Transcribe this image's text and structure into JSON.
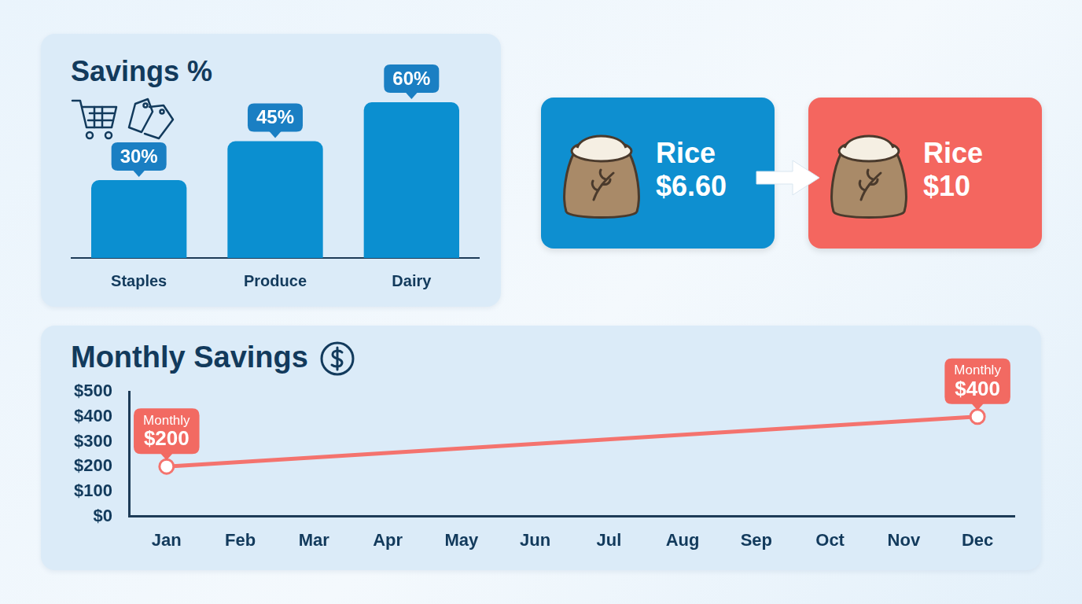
{
  "chart_data": [
    {
      "type": "bar",
      "title": "Savings %",
      "categories": [
        "Staples",
        "Produce",
        "Dairy"
      ],
      "values": [
        30,
        45,
        60
      ],
      "value_labels": [
        "30%",
        "45%",
        "60%"
      ],
      "data_labels": true,
      "color": "#0b8fd0",
      "ylim": [
        0,
        60
      ],
      "tick_labels": "x",
      "grid": false
    },
    {
      "type": "line",
      "title": "Monthly Savings",
      "categories": [
        "Jan",
        "Feb",
        "Mar",
        "Apr",
        "May",
        "Jun",
        "Jul",
        "Aug",
        "Sep",
        "Oct",
        "Nov",
        "Dec"
      ],
      "values": [
        200,
        null,
        null,
        null,
        null,
        null,
        null,
        null,
        null,
        null,
        null,
        400
      ],
      "value_labels": [
        "Monthly $200",
        null,
        null,
        null,
        null,
        null,
        null,
        null,
        null,
        null,
        null,
        "Monthly $400"
      ],
      "data_labels": true,
      "color": "#f4736e",
      "marker": "circle",
      "ylim": [
        0,
        500
      ],
      "yticks": [
        {
          "value": 0,
          "label": "$0"
        },
        {
          "value": 100,
          "label": "$100"
        },
        {
          "value": 200,
          "label": "$200"
        },
        {
          "value": 300,
          "label": "$300"
        },
        {
          "value": 400,
          "label": "$400"
        },
        {
          "value": 500,
          "label": "$500"
        }
      ],
      "grid": false
    }
  ],
  "comparison": {
    "items": [
      {
        "label": "Rice",
        "price": "$6.60",
        "color": "#0e8fd0"
      },
      {
        "label": "Rice",
        "price": "$10",
        "color": "#f4665f"
      }
    ]
  }
}
